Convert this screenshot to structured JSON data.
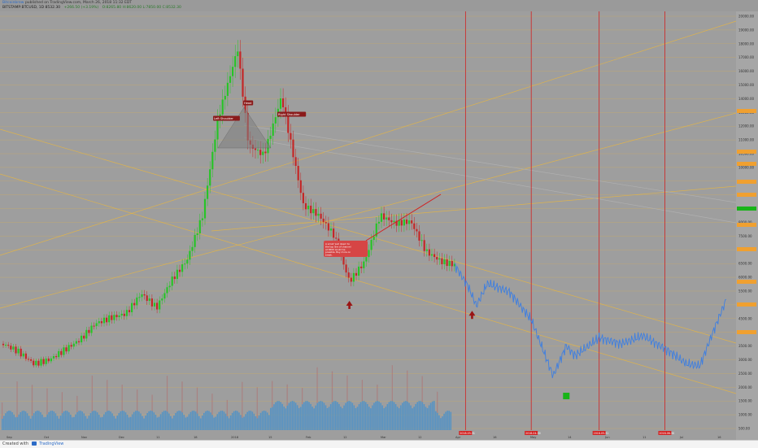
{
  "header": {
    "author": "Bitcoinbrew",
    "published": "published on TradingView.com, March 26, 2018 11:32 EDT",
    "symbol_line": "BITSTAMP:BTCUSD, 1D  8532.30",
    "change": "+266.50 (+3.19%)",
    "ohlc": "O:8265.80  H:8620.00  L:7850.00  C:8532.30"
  },
  "footer": {
    "created_with": "Created with",
    "brand": "TradingView"
  },
  "annotations": {
    "left_shoulder": "Left Shoulder",
    "head": "Head",
    "right_shoulder": "Right Shoulder",
    "callout": "A small 'pull down' to the top line of channel at 6500 would be possible. Buy more on break."
  },
  "price_labels": [
    "20000.00",
    "19000.00",
    "18000.00",
    "17000.00",
    "16000.00",
    "15000.00",
    "14000.00",
    "13000.00",
    "12000.00",
    "11000.00",
    "10500.00",
    "10000.00",
    "9500.00",
    "9000.00",
    "8500.00",
    "8000.00",
    "7500.00",
    "7000.00",
    "6500.00",
    "6000.00",
    "5500.00",
    "5000.00",
    "4500.00",
    "4000.00",
    "3500.00",
    "3000.00",
    "2500.00",
    "2000.00",
    "1500.00",
    "1000.00",
    "500.00"
  ],
  "date_labels": [
    "Sep",
    "Oct",
    "Nov",
    "Dec",
    "11",
    "18",
    "2018",
    "15",
    "Feb",
    "12",
    "Mar",
    "12",
    "Apr",
    "16",
    "May",
    "14",
    "Jun",
    "11",
    "Jul",
    "16"
  ],
  "vline_labels": [
    "2018-03-31",
    "2018-04-30",
    "2018-05-31",
    "2018-06-30"
  ],
  "colors": {
    "background": "#9e9e9e",
    "up_candle": "#27c427",
    "down_candle": "#c42727",
    "projection": "#3f7fe0",
    "channel": "#e8b640",
    "vertical_marker": "#d12020",
    "price_tag": "#f0a030",
    "current_price_tag": "#18b418",
    "volume": "#3e8fd0"
  },
  "chart_data": {
    "type": "line",
    "title": "BITSTAMP:BTCUSD, 1D",
    "xlabel": "",
    "ylabel": "",
    "ylim": [
      300,
      21000
    ],
    "x_start": "2017-09-01",
    "x_end": "2018-07-31",
    "series": [
      {
        "name": "",
        "kind": "candlestick_closes",
        "x": [
          "2017-09-01",
          "2017-09-08",
          "2017-09-15",
          "2017-09-22",
          "2017-09-29",
          "2017-10-06",
          "2017-10-13",
          "2017-10-20",
          "2017-10-27",
          "2017-11-03",
          "2017-11-10",
          "2017-11-17",
          "2017-11-24",
          "2017-12-01",
          "2017-12-08",
          "2017-12-17",
          "2017-12-22",
          "2017-12-29",
          "2018-01-06",
          "2018-01-16",
          "2018-01-23",
          "2018-01-30",
          "2018-02-06",
          "2018-02-13",
          "2018-02-20",
          "2018-02-27",
          "2018-03-06",
          "2018-03-13",
          "2018-03-20",
          "2018-03-26"
        ],
        "values": [
          4600,
          4200,
          3600,
          3800,
          4300,
          4800,
          5600,
          5900,
          6100,
          7100,
          6400,
          7800,
          8800,
          11000,
          15800,
          19300,
          14500,
          14000,
          16900,
          11500,
          11000,
          10000,
          7700,
          8700,
          11000,
          10600,
          10700,
          9200,
          8700,
          8532
        ]
      },
      {
        "name": "",
        "kind": "projection",
        "x": [
          "2018-03-26",
          "2018-04-01",
          "2018-04-05",
          "2018-04-10",
          "2018-04-20",
          "2018-04-30",
          "2018-05-10",
          "2018-05-16",
          "2018-05-20",
          "2018-05-31",
          "2018-06-10",
          "2018-06-20",
          "2018-07-01",
          "2018-07-10",
          "2018-07-16",
          "2018-07-22",
          "2018-07-28"
        ],
        "values": [
          8532,
          7500,
          6500,
          7600,
          7200,
          5800,
          3000,
          4500,
          4000,
          4900,
          4600,
          5000,
          4300,
          3600,
          3500,
          5200,
          6800
        ]
      }
    ],
    "markers": [
      {
        "label": "up-arrow",
        "x": "2018-02-06",
        "y": 6500
      },
      {
        "label": "up-arrow",
        "x": "2018-04-03",
        "y": 6000
      },
      {
        "label": "target",
        "x": "2018-05-16",
        "y": 2000
      }
    ],
    "vertical_lines": [
      "2018-03-31",
      "2018-04-30",
      "2018-05-31",
      "2018-06-30"
    ]
  }
}
